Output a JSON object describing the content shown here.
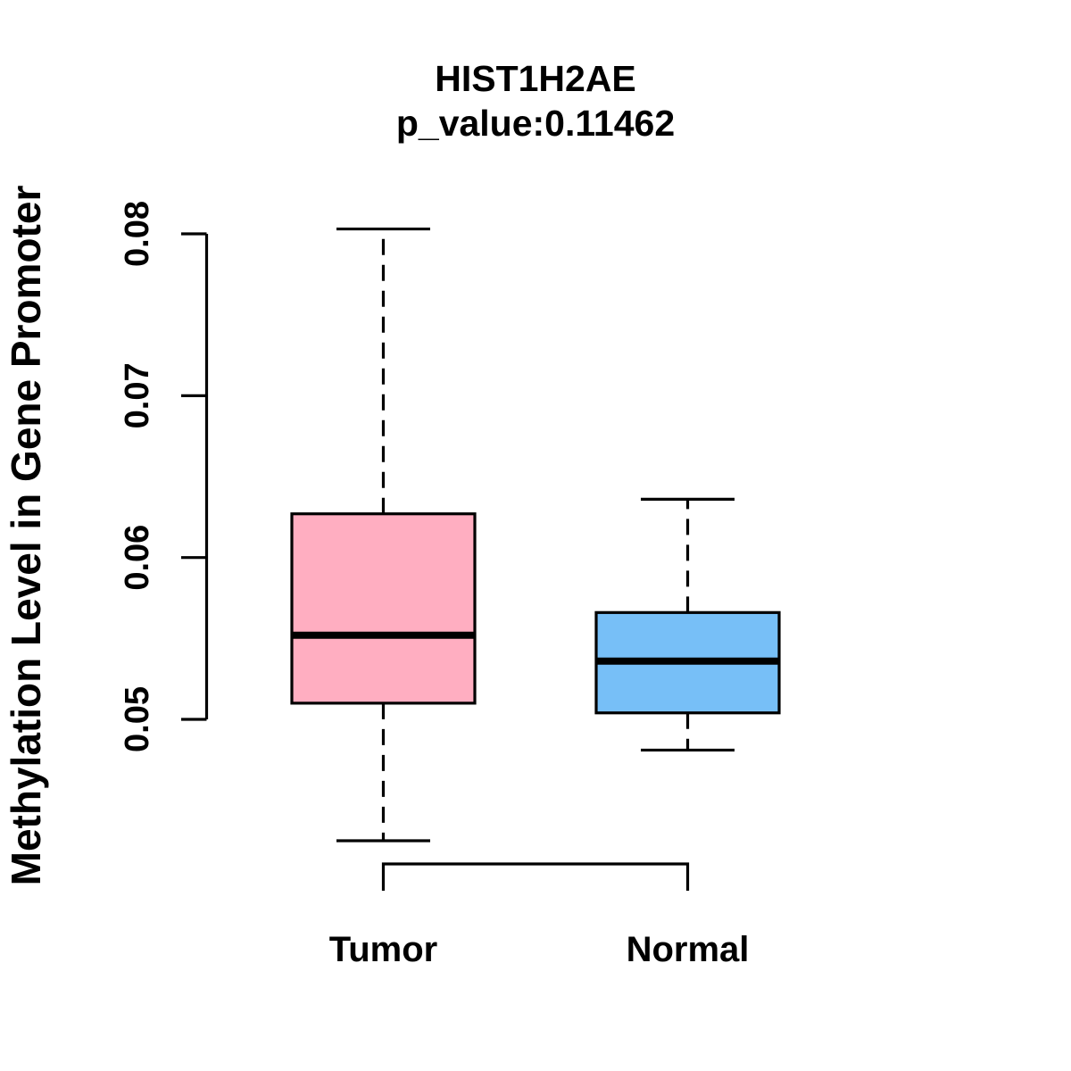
{
  "title": {
    "gene": "HIST1H2AE",
    "p_value_line": "p_value:0.11462"
  },
  "axes": {
    "y": {
      "label": "Methylation Level in Gene Promoter",
      "tick_labels": [
        "0.05",
        "0.06",
        "0.07",
        "0.08"
      ]
    }
  },
  "colors": {
    "background": "#FFFFFF",
    "line": "#000000",
    "tumor_fill": "#FFAEC1",
    "normal_fill": "#77BFF7"
  },
  "chart_data": {
    "type": "boxplot",
    "title": "HIST1H2AE",
    "subtitle": "p_value:0.11462",
    "gene": "HIST1H2AE",
    "p_value": 0.11462,
    "ylabel": "Methylation Level in Gene Promoter",
    "xlabel": "",
    "yticks": [
      0.05,
      0.06,
      0.07,
      0.08
    ],
    "ytick_labels": [
      "0.05",
      "0.06",
      "0.07",
      "0.08"
    ],
    "ylim": [
      0.042,
      0.081
    ],
    "grid": false,
    "legend": "none",
    "categories": [
      "Tumor",
      "Normal"
    ],
    "series": [
      {
        "name": "Tumor",
        "color": "#FFAEC1",
        "whisker_low": 0.0425,
        "q1": 0.051,
        "median": 0.0552,
        "q3": 0.0627,
        "whisker_high": 0.0803
      },
      {
        "name": "Normal",
        "color": "#77BFF7",
        "whisker_low": 0.0481,
        "q1": 0.0504,
        "median": 0.0536,
        "q3": 0.0566,
        "whisker_high": 0.0636
      }
    ]
  }
}
